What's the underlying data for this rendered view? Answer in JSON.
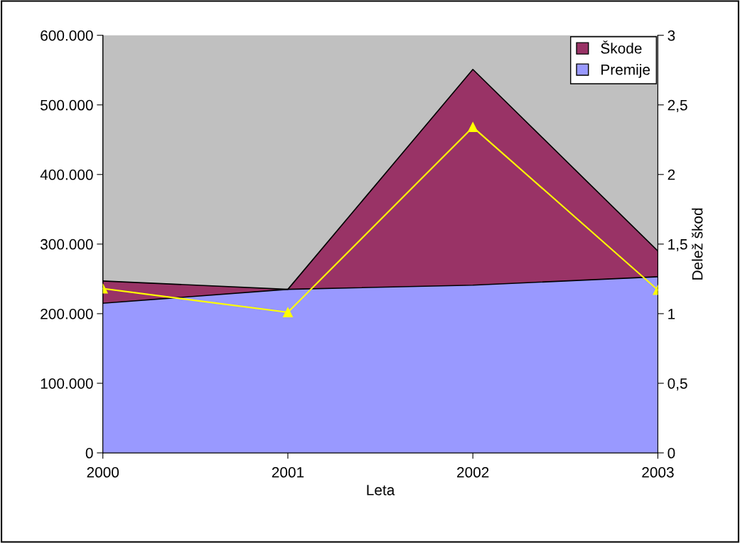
{
  "chart_data": {
    "type": "area",
    "xlabel": "Leta",
    "y2label": "Delež škod",
    "x": [
      2000,
      2001,
      2002,
      2003
    ],
    "series": [
      {
        "name": "Škode",
        "color": "#993366",
        "values": [
          247000,
          235000,
          551000,
          290000
        ]
      },
      {
        "name": "Premije",
        "color": "#9999ff",
        "values": [
          215000,
          235000,
          241000,
          253000
        ]
      },
      {
        "type": "line",
        "axis": "y2",
        "color": "#ffff00",
        "marker": "triangle",
        "values": [
          1.18,
          1.01,
          2.34,
          1.17
        ]
      }
    ],
    "xlim": [
      2000,
      2003
    ],
    "xticks": [
      2000,
      2001,
      2002,
      2003
    ],
    "ylim": [
      0,
      600000
    ],
    "yticks": [
      {
        "value": 0,
        "label": "0"
      },
      {
        "value": 100000,
        "label": "100.000"
      },
      {
        "value": 200000,
        "label": "200.000"
      },
      {
        "value": 300000,
        "label": "300.000"
      },
      {
        "value": 400000,
        "label": "400.000"
      },
      {
        "value": 500000,
        "label": "500.000"
      },
      {
        "value": 600000,
        "label": "600.000"
      }
    ],
    "y2lim": [
      0,
      3
    ],
    "y2ticks": [
      0,
      {
        "value": 0.5,
        "label": "0,5"
      },
      1,
      {
        "value": 1.5,
        "label": "1,5"
      },
      2,
      {
        "value": 2.5,
        "label": "2,5"
      },
      3
    ],
    "grid": false,
    "legend": "top right"
  }
}
